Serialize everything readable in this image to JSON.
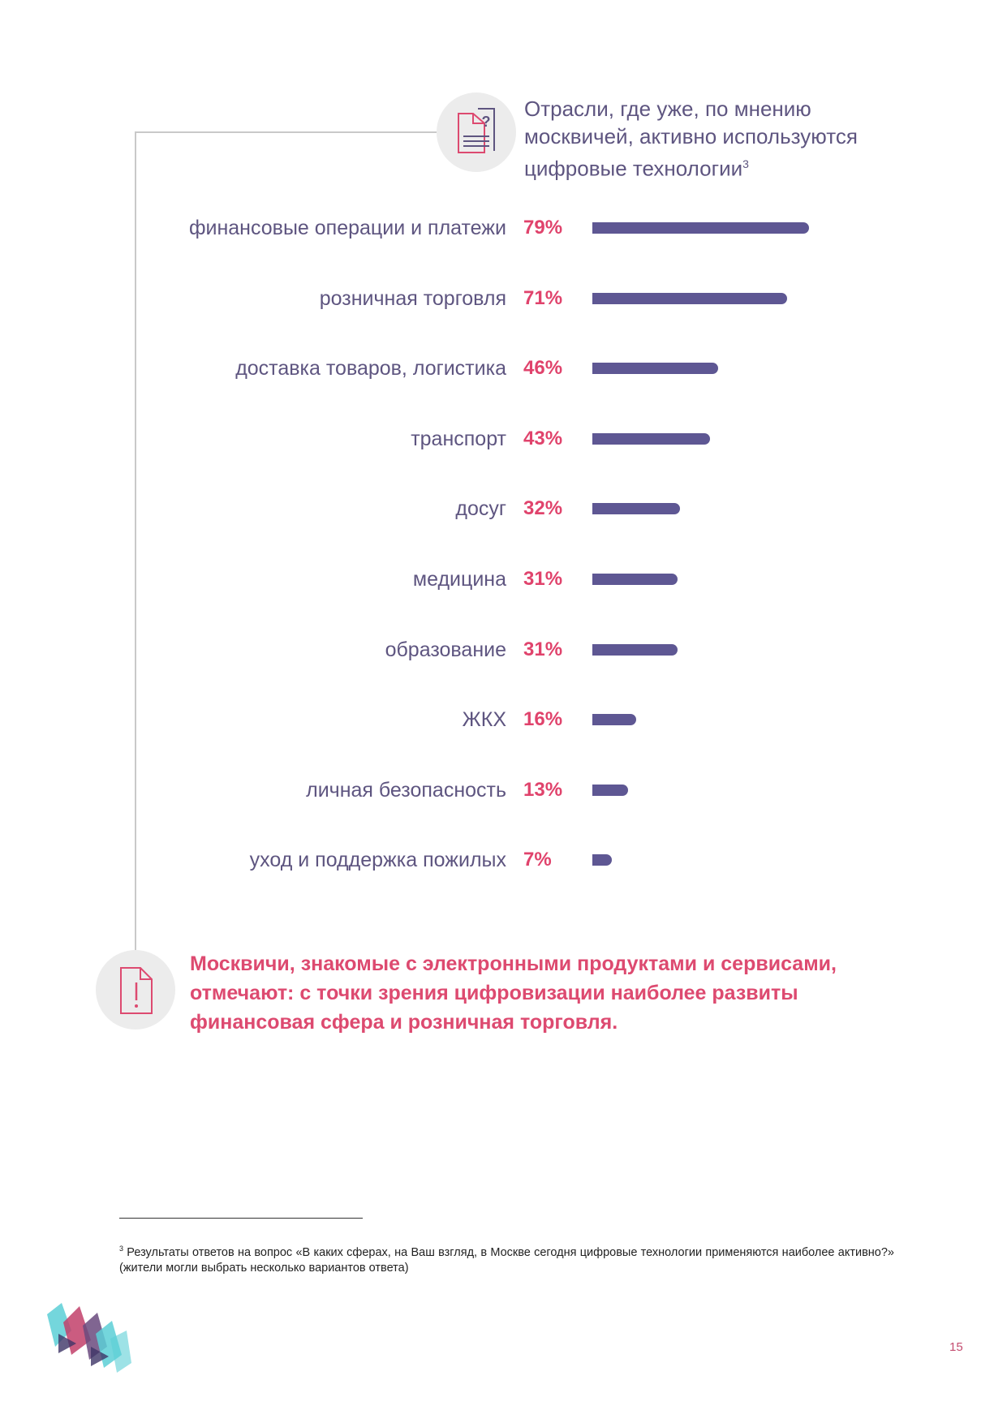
{
  "chart_data": {
    "type": "bar",
    "orientation": "horizontal",
    "title": "Отрасли, где уже, по мнению москвичей, активно используются цифровые технологии",
    "title_footnote_ref": "3",
    "categories": [
      "финансовые операции и платежи",
      "розничная торговля",
      "доставка товаров, логистика",
      "транспорт",
      "досуг",
      "медицина",
      "образование",
      "ЖКХ",
      "личная безопасность",
      "уход и поддержка пожилых"
    ],
    "values": [
      79,
      71,
      46,
      43,
      32,
      31,
      31,
      16,
      13,
      7
    ],
    "value_labels": [
      "79%",
      "71%",
      "46%",
      "43%",
      "32%",
      "31%",
      "31%",
      "16%",
      "13%",
      "7%"
    ],
    "xlim": [
      0,
      100
    ],
    "bar_color": "#5e5793",
    "label_color": "#5e5580",
    "value_color": "#e0436c"
  },
  "conclusion": "Москвичи, знакомые с электронными продуктами и сервисами, отмечают: с точки зрения цифровизации наиболее развиты финансовая сфера и розничная торговля.",
  "footnote": {
    "marker": "3",
    "text": "Результаты ответов на вопрос «В каких сферах, на Ваш взгляд, в Москве сегодня цифровые технологии применяются наиболее активно?» (жители могли выбрать несколько вариантов ответа)"
  },
  "page_number": "15",
  "icons": {
    "top": "document-question-icon",
    "bottom": "document-exclamation-icon",
    "logo": "brand-logo-icon"
  }
}
